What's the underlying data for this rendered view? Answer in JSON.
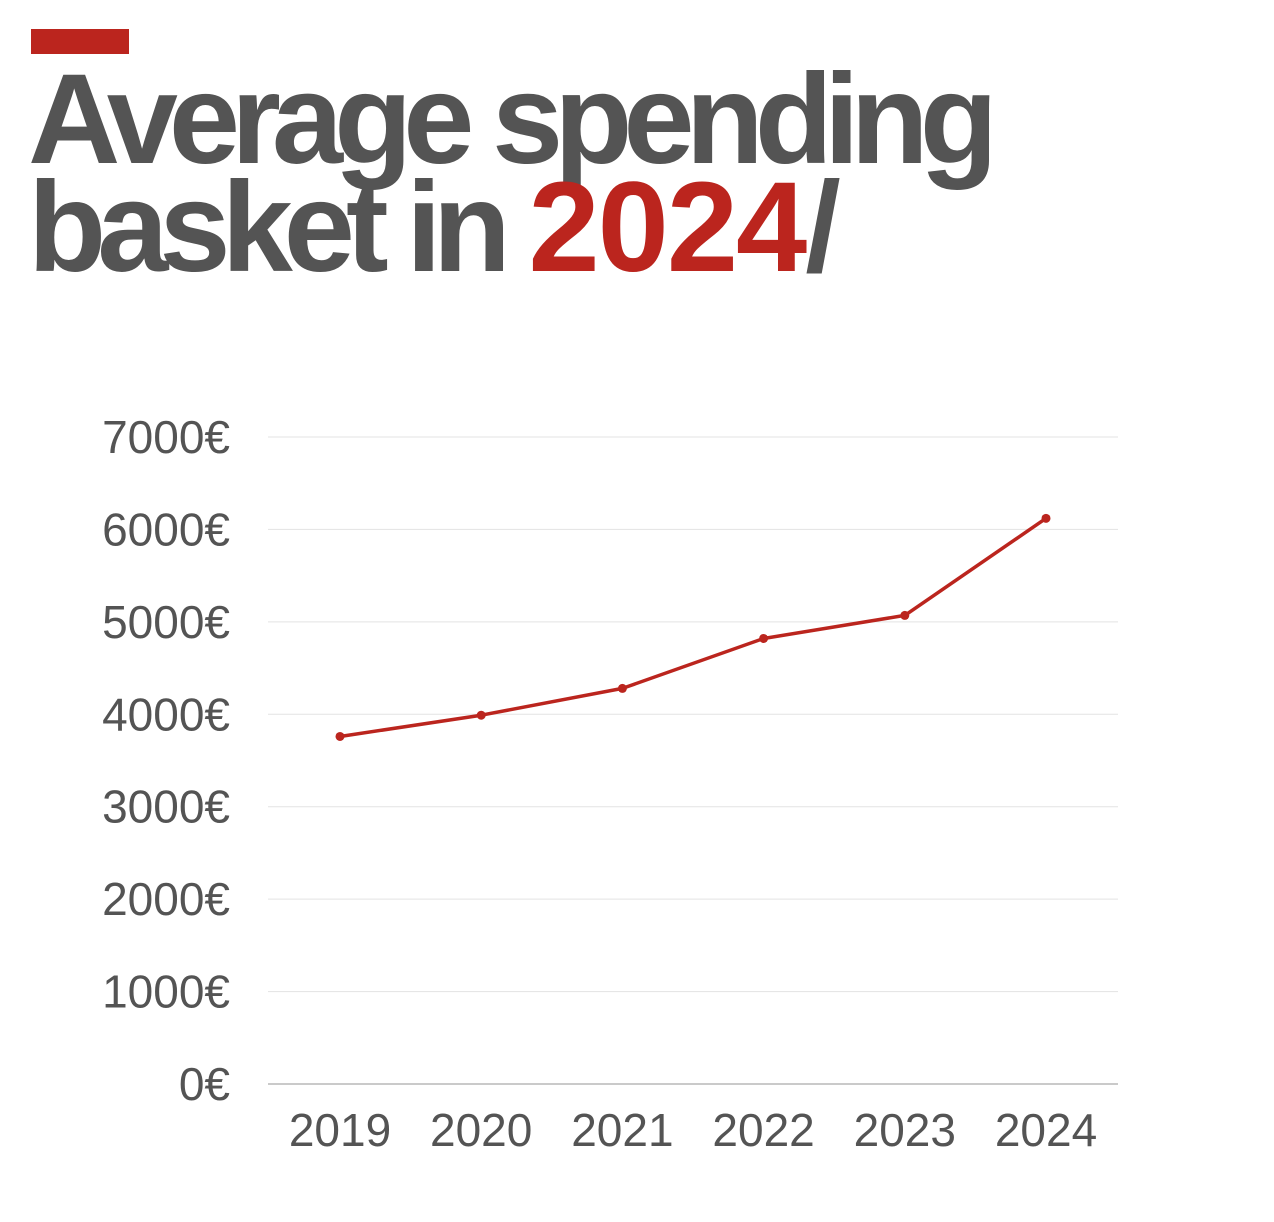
{
  "header": {
    "title_part1": "Average spending",
    "title_part2": "basket in ",
    "title_highlight": "2024",
    "title_suffix": "/"
  },
  "colors": {
    "accent": "#bb251e",
    "text": "#545454",
    "grid": "#e3e3e3",
    "axis": "#b8b8b8"
  },
  "chart_data": {
    "type": "line",
    "title": "Average spending basket in 2024/",
    "categories": [
      "2019",
      "2020",
      "2021",
      "2022",
      "2023",
      "2024"
    ],
    "series": [
      {
        "values": [
          3760,
          3990,
          4280,
          4820,
          5070,
          6120
        ]
      }
    ],
    "xlabel": "",
    "ylabel": "",
    "ylim": [
      0,
      7000
    ],
    "yticks": [
      0,
      1000,
      2000,
      3000,
      4000,
      5000,
      6000,
      7000
    ],
    "ytick_labels": [
      "0€",
      "1000€",
      "2000€",
      "3000€",
      "4000€",
      "5000€",
      "6000€",
      "7000€"
    ],
    "grid": true,
    "legend": "none",
    "line_color": "#bb251e"
  }
}
